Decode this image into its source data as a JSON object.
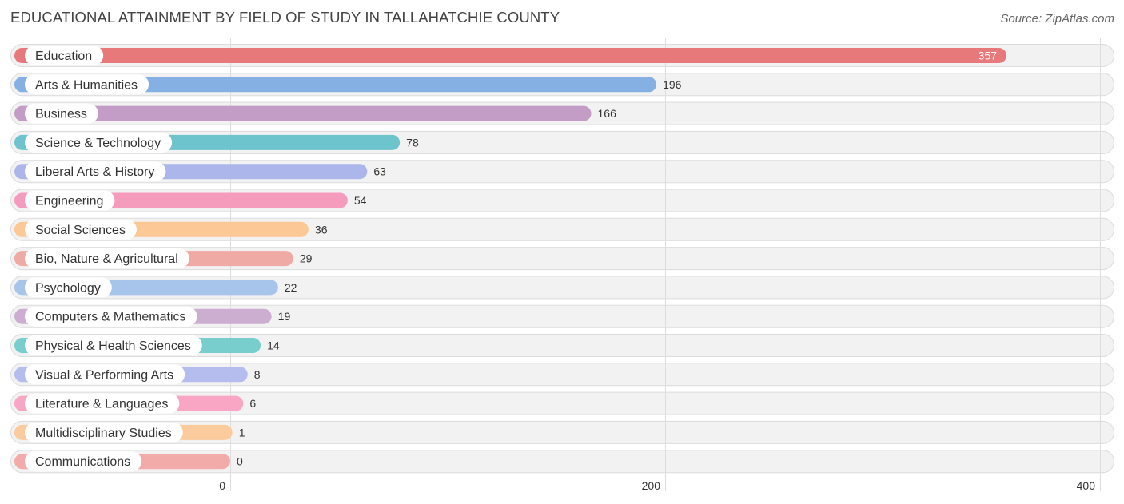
{
  "header": {
    "title": "EDUCATIONAL ATTAINMENT BY FIELD OF STUDY IN TALLAHATCHIE COUNTY",
    "source": "Source: ZipAtlas.com"
  },
  "chart_data": {
    "type": "bar",
    "orientation": "horizontal",
    "title": "EDUCATIONAL ATTAINMENT BY FIELD OF STUDY IN TALLAHATCHIE COUNTY",
    "xlabel": "",
    "ylabel": "",
    "xlim": [
      0,
      400
    ],
    "ticks": [
      0,
      200,
      400
    ],
    "tick_labels": [
      "0",
      "200",
      "400"
    ],
    "grid": true,
    "categories": [
      "Education",
      "Arts & Humanities",
      "Business",
      "Science & Technology",
      "Liberal Arts & History",
      "Engineering",
      "Social Sciences",
      "Bio, Nature & Agricultural",
      "Psychology",
      "Computers & Mathematics",
      "Physical & Health Sciences",
      "Visual & Performing Arts",
      "Literature & Languages",
      "Multidisciplinary Studies",
      "Communications"
    ],
    "values": [
      357,
      196,
      166,
      78,
      63,
      54,
      36,
      29,
      22,
      19,
      14,
      8,
      6,
      1,
      0
    ],
    "value_labels": [
      "357",
      "196",
      "166",
      "78",
      "63",
      "54",
      "36",
      "29",
      "22",
      "19",
      "14",
      "8",
      "6",
      "1",
      "0"
    ],
    "colors": [
      "#e8797a",
      "#85b0e3",
      "#c39dc6",
      "#6ec4cc",
      "#adb6ea",
      "#f59cbc",
      "#fbc896",
      "#efaaa6",
      "#a7c5ea",
      "#cbaed0",
      "#78cdcd",
      "#b5bdee",
      "#f8a6c3",
      "#fbcb9d",
      "#f2aba8"
    ]
  }
}
